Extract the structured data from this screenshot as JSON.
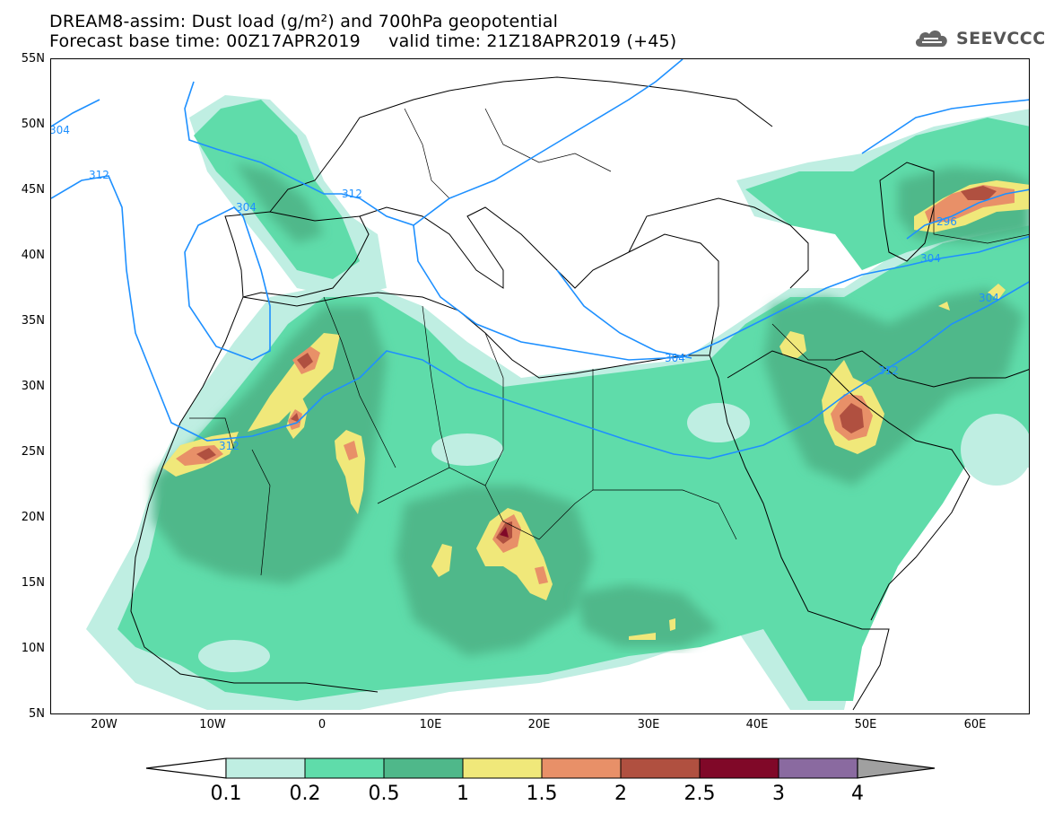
{
  "header": {
    "title_line1": "DREAM8-assim: Dust load (g/m²) and 700hPa geopotential",
    "forecast_base_label": "Forecast base time: 00Z17APR2019",
    "valid_time_label": "valid time: 21Z18APR2019 (+45)"
  },
  "logo": {
    "text": "SEEVCCC",
    "icon": "cloud-icon"
  },
  "map": {
    "lat_labels": [
      "55N",
      "50N",
      "45N",
      "40N",
      "35N",
      "30N",
      "25N",
      "20N",
      "15N",
      "10N",
      "5N"
    ],
    "lon_labels": [
      "20W",
      "10W",
      "0",
      "10E",
      "20E",
      "30E",
      "40E",
      "50E",
      "60E"
    ],
    "contour_labels": [
      "304",
      "312",
      "304",
      "312",
      "304",
      "296",
      "304",
      "312",
      "304",
      "312"
    ]
  },
  "colorbar": {
    "labels": [
      "0.1",
      "0.2",
      "0.5",
      "1",
      "1.5",
      "2",
      "2.5",
      "3",
      "4"
    ],
    "colors": [
      "#ffffff",
      "#bfeee2",
      "#5fdcaa",
      "#4fb88a",
      "#f0e87a",
      "#e89068",
      "#b05040",
      "#800828",
      "#8a6aa0",
      "#a0a0a0"
    ]
  },
  "colors": {
    "contour": "#1e90ff",
    "border": "#000000"
  }
}
